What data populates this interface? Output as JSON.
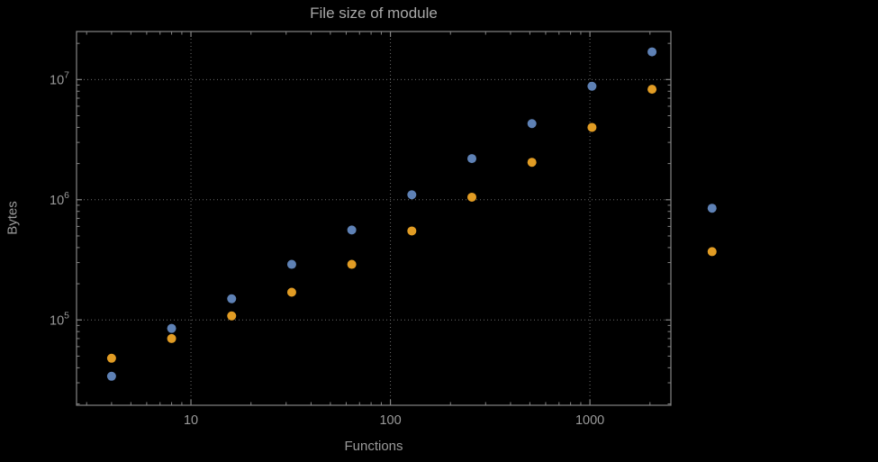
{
  "chart_data": {
    "type": "scatter",
    "title": "File size of module",
    "xlabel": "Functions",
    "ylabel": "Bytes",
    "x_scale": "log",
    "y_scale": "log",
    "grid": true,
    "legend": "none",
    "xlim": [
      2.67,
      2546
    ],
    "ylim": [
      19500,
      25100000
    ],
    "x_ticks": [
      10,
      100,
      1000
    ],
    "x_tick_labels": [
      "10",
      "100",
      "1000"
    ],
    "y_ticks": [
      100000,
      1000000,
      10000000
    ],
    "y_tick_exponents": [
      "5",
      "6",
      "7"
    ],
    "x": [
      4,
      8,
      16,
      32,
      64,
      128,
      256,
      512,
      1024,
      2048,
      4096
    ],
    "series": [
      {
        "name": "blue",
        "color": "#5e81b5",
        "values": [
          34000,
          85000,
          150000,
          290000,
          560000,
          1100000,
          2200000,
          4300000,
          8800000,
          17000000,
          850000
        ]
      },
      {
        "name": "orange",
        "color": "#e19c24",
        "values": [
          48000,
          70000,
          108000,
          170000,
          290000,
          550000,
          1050000,
          2050000,
          4000000,
          8300000,
          370000
        ]
      }
    ],
    "colors": {
      "background": "#000000",
      "frame": "#848484",
      "grid": "#6b6b6b",
      "tick_text": "#9a9a9a",
      "title_text": "#a8a8a8",
      "axis_label_text": "#9a9a9a"
    }
  }
}
